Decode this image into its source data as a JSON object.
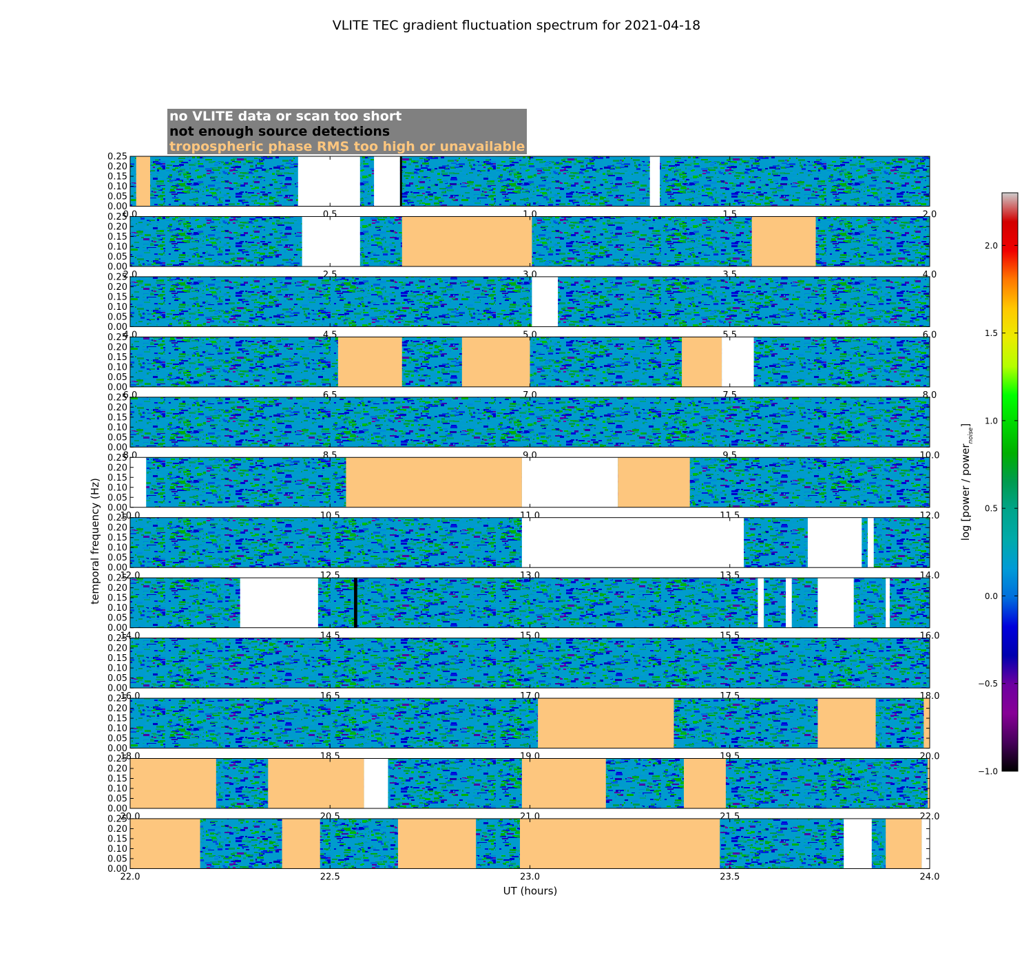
{
  "chart_data": {
    "type": "heatmap",
    "title": "VLITE TEC gradient fluctuation spectrum for 2021-04-18",
    "xlabel": "UT (hours)",
    "ylabel": "temporal frequency (Hz)",
    "ylim": [
      0.0,
      0.25
    ],
    "yticks": [
      "0.00",
      "0.05",
      "0.10",
      "0.15",
      "0.20",
      "0.25"
    ],
    "colorbar": {
      "label": "log [power / power",
      "label_sub": "noise",
      "label_close": "]",
      "range": [
        -1.0,
        2.3
      ],
      "ticks": [
        "−1.0",
        "−0.5",
        "0.0",
        "0.5",
        "1.0",
        "1.5",
        "2.0"
      ],
      "tick_values": [
        -1.0,
        -0.5,
        0.0,
        0.5,
        1.0,
        1.5,
        2.0
      ],
      "colormap": "nipy_spectral"
    },
    "flag_legend": [
      {
        "label": "no VLITE data or scan too short",
        "color": "#ffffff"
      },
      {
        "label": "not enough source detections",
        "color": "#000000"
      },
      {
        "label": "tropospheric phase RMS too high or unavailable",
        "color": "#fdc67e"
      }
    ],
    "panels": [
      {
        "xlim": [
          0.0,
          2.0
        ],
        "xticks": [
          "0.0",
          "0.5",
          "1.0",
          "1.5",
          "2.0"
        ],
        "segments": [
          {
            "start": 0.015,
            "end": 0.05,
            "flag": "tropo"
          },
          {
            "start": 0.42,
            "end": 0.575,
            "flag": "nodata"
          },
          {
            "start": 0.61,
            "end": 0.675,
            "flag": "nodata"
          },
          {
            "start": 1.3,
            "end": 1.325,
            "flag": "nodata"
          },
          {
            "start": 0.675,
            "end": 0.68,
            "flag": "nodet"
          }
        ]
      },
      {
        "xlim": [
          2.0,
          4.0
        ],
        "xticks": [
          "2.0",
          "2.5",
          "3.0",
          "3.5",
          "4.0"
        ],
        "segments": [
          {
            "start": 2.43,
            "end": 2.575,
            "flag": "nodata"
          },
          {
            "start": 2.68,
            "end": 3.005,
            "flag": "tropo"
          },
          {
            "start": 3.555,
            "end": 3.715,
            "flag": "tropo"
          }
        ]
      },
      {
        "xlim": [
          4.0,
          6.0
        ],
        "xticks": [
          "4.0",
          "4.5",
          "5.0",
          "5.5",
          "6.0"
        ],
        "segments": [
          {
            "start": 5.005,
            "end": 5.07,
            "flag": "nodata"
          }
        ]
      },
      {
        "xlim": [
          6.0,
          8.0
        ],
        "xticks": [
          "6.0",
          "6.5",
          "7.0",
          "7.5",
          "8.0"
        ],
        "segments": [
          {
            "start": 6.52,
            "end": 6.68,
            "flag": "tropo"
          },
          {
            "start": 6.83,
            "end": 7.0,
            "flag": "tropo"
          },
          {
            "start": 7.38,
            "end": 7.48,
            "flag": "tropo"
          },
          {
            "start": 7.48,
            "end": 7.56,
            "flag": "nodata"
          }
        ]
      },
      {
        "xlim": [
          8.0,
          10.0
        ],
        "xticks": [
          "8.0",
          "8.5",
          "9.0",
          "9.5",
          "10.0"
        ],
        "segments": []
      },
      {
        "xlim": [
          10.0,
          12.0
        ],
        "xticks": [
          "10.0",
          "10.5",
          "11.0",
          "11.5",
          "12.0"
        ],
        "segments": [
          {
            "start": 10.0,
            "end": 10.04,
            "flag": "nodata"
          },
          {
            "start": 10.54,
            "end": 10.98,
            "flag": "tropo"
          },
          {
            "start": 10.98,
            "end": 11.22,
            "flag": "nodata"
          },
          {
            "start": 11.22,
            "end": 11.4,
            "flag": "tropo"
          }
        ]
      },
      {
        "xlim": [
          12.0,
          14.0
        ],
        "xticks": [
          "12.0",
          "12.5",
          "13.0",
          "13.5",
          "14.0"
        ],
        "segments": [
          {
            "start": 12.98,
            "end": 13.535,
            "flag": "nodata"
          },
          {
            "start": 13.695,
            "end": 13.83,
            "flag": "nodata"
          },
          {
            "start": 13.845,
            "end": 13.86,
            "flag": "nodata"
          }
        ]
      },
      {
        "xlim": [
          14.0,
          16.0
        ],
        "xticks": [
          "14.0",
          "14.5",
          "15.0",
          "15.5",
          "16.0"
        ],
        "segments": [
          {
            "start": 14.275,
            "end": 14.47,
            "flag": "nodata"
          },
          {
            "start": 14.56,
            "end": 14.568,
            "flag": "nodet"
          },
          {
            "start": 15.57,
            "end": 15.585,
            "flag": "nodata"
          },
          {
            "start": 15.64,
            "end": 15.655,
            "flag": "nodata"
          },
          {
            "start": 15.72,
            "end": 15.81,
            "flag": "nodata"
          },
          {
            "start": 15.89,
            "end": 15.9,
            "flag": "nodata"
          }
        ]
      },
      {
        "xlim": [
          16.0,
          18.0
        ],
        "xticks": [
          "16.0",
          "16.5",
          "17.0",
          "17.5",
          "18.0"
        ],
        "segments": []
      },
      {
        "xlim": [
          18.0,
          20.0
        ],
        "xticks": [
          "18.0",
          "18.5",
          "19.0",
          "19.5",
          "20.0"
        ],
        "segments": [
          {
            "start": 19.02,
            "end": 19.36,
            "flag": "tropo"
          },
          {
            "start": 19.72,
            "end": 19.865,
            "flag": "tropo"
          },
          {
            "start": 19.985,
            "end": 20.0,
            "flag": "tropo"
          }
        ]
      },
      {
        "xlim": [
          20.0,
          22.0
        ],
        "xticks": [
          "20.0",
          "20.5",
          "21.0",
          "21.5",
          "22.0"
        ],
        "segments": [
          {
            "start": 20.0,
            "end": 20.215,
            "flag": "tropo"
          },
          {
            "start": 20.345,
            "end": 20.585,
            "flag": "tropo"
          },
          {
            "start": 20.585,
            "end": 20.645,
            "flag": "nodata"
          },
          {
            "start": 20.98,
            "end": 21.19,
            "flag": "tropo"
          },
          {
            "start": 21.385,
            "end": 21.49,
            "flag": "tropo"
          },
          {
            "start": 21.995,
            "end": 22.0,
            "flag": "tropo"
          }
        ]
      },
      {
        "xlim": [
          22.0,
          24.0
        ],
        "xticks": [
          "22.0",
          "22.5",
          "23.0",
          "23.5",
          "24.0"
        ],
        "segments": [
          {
            "start": 22.0,
            "end": 22.175,
            "flag": "tropo"
          },
          {
            "start": 22.38,
            "end": 22.475,
            "flag": "tropo"
          },
          {
            "start": 22.67,
            "end": 22.865,
            "flag": "tropo"
          },
          {
            "start": 22.975,
            "end": 23.475,
            "flag": "tropo"
          },
          {
            "start": 23.785,
            "end": 23.855,
            "flag": "nodata"
          },
          {
            "start": 23.89,
            "end": 23.98,
            "flag": "tropo"
          },
          {
            "start": 23.98,
            "end": 24.0,
            "flag": "nodata"
          }
        ]
      }
    ]
  }
}
